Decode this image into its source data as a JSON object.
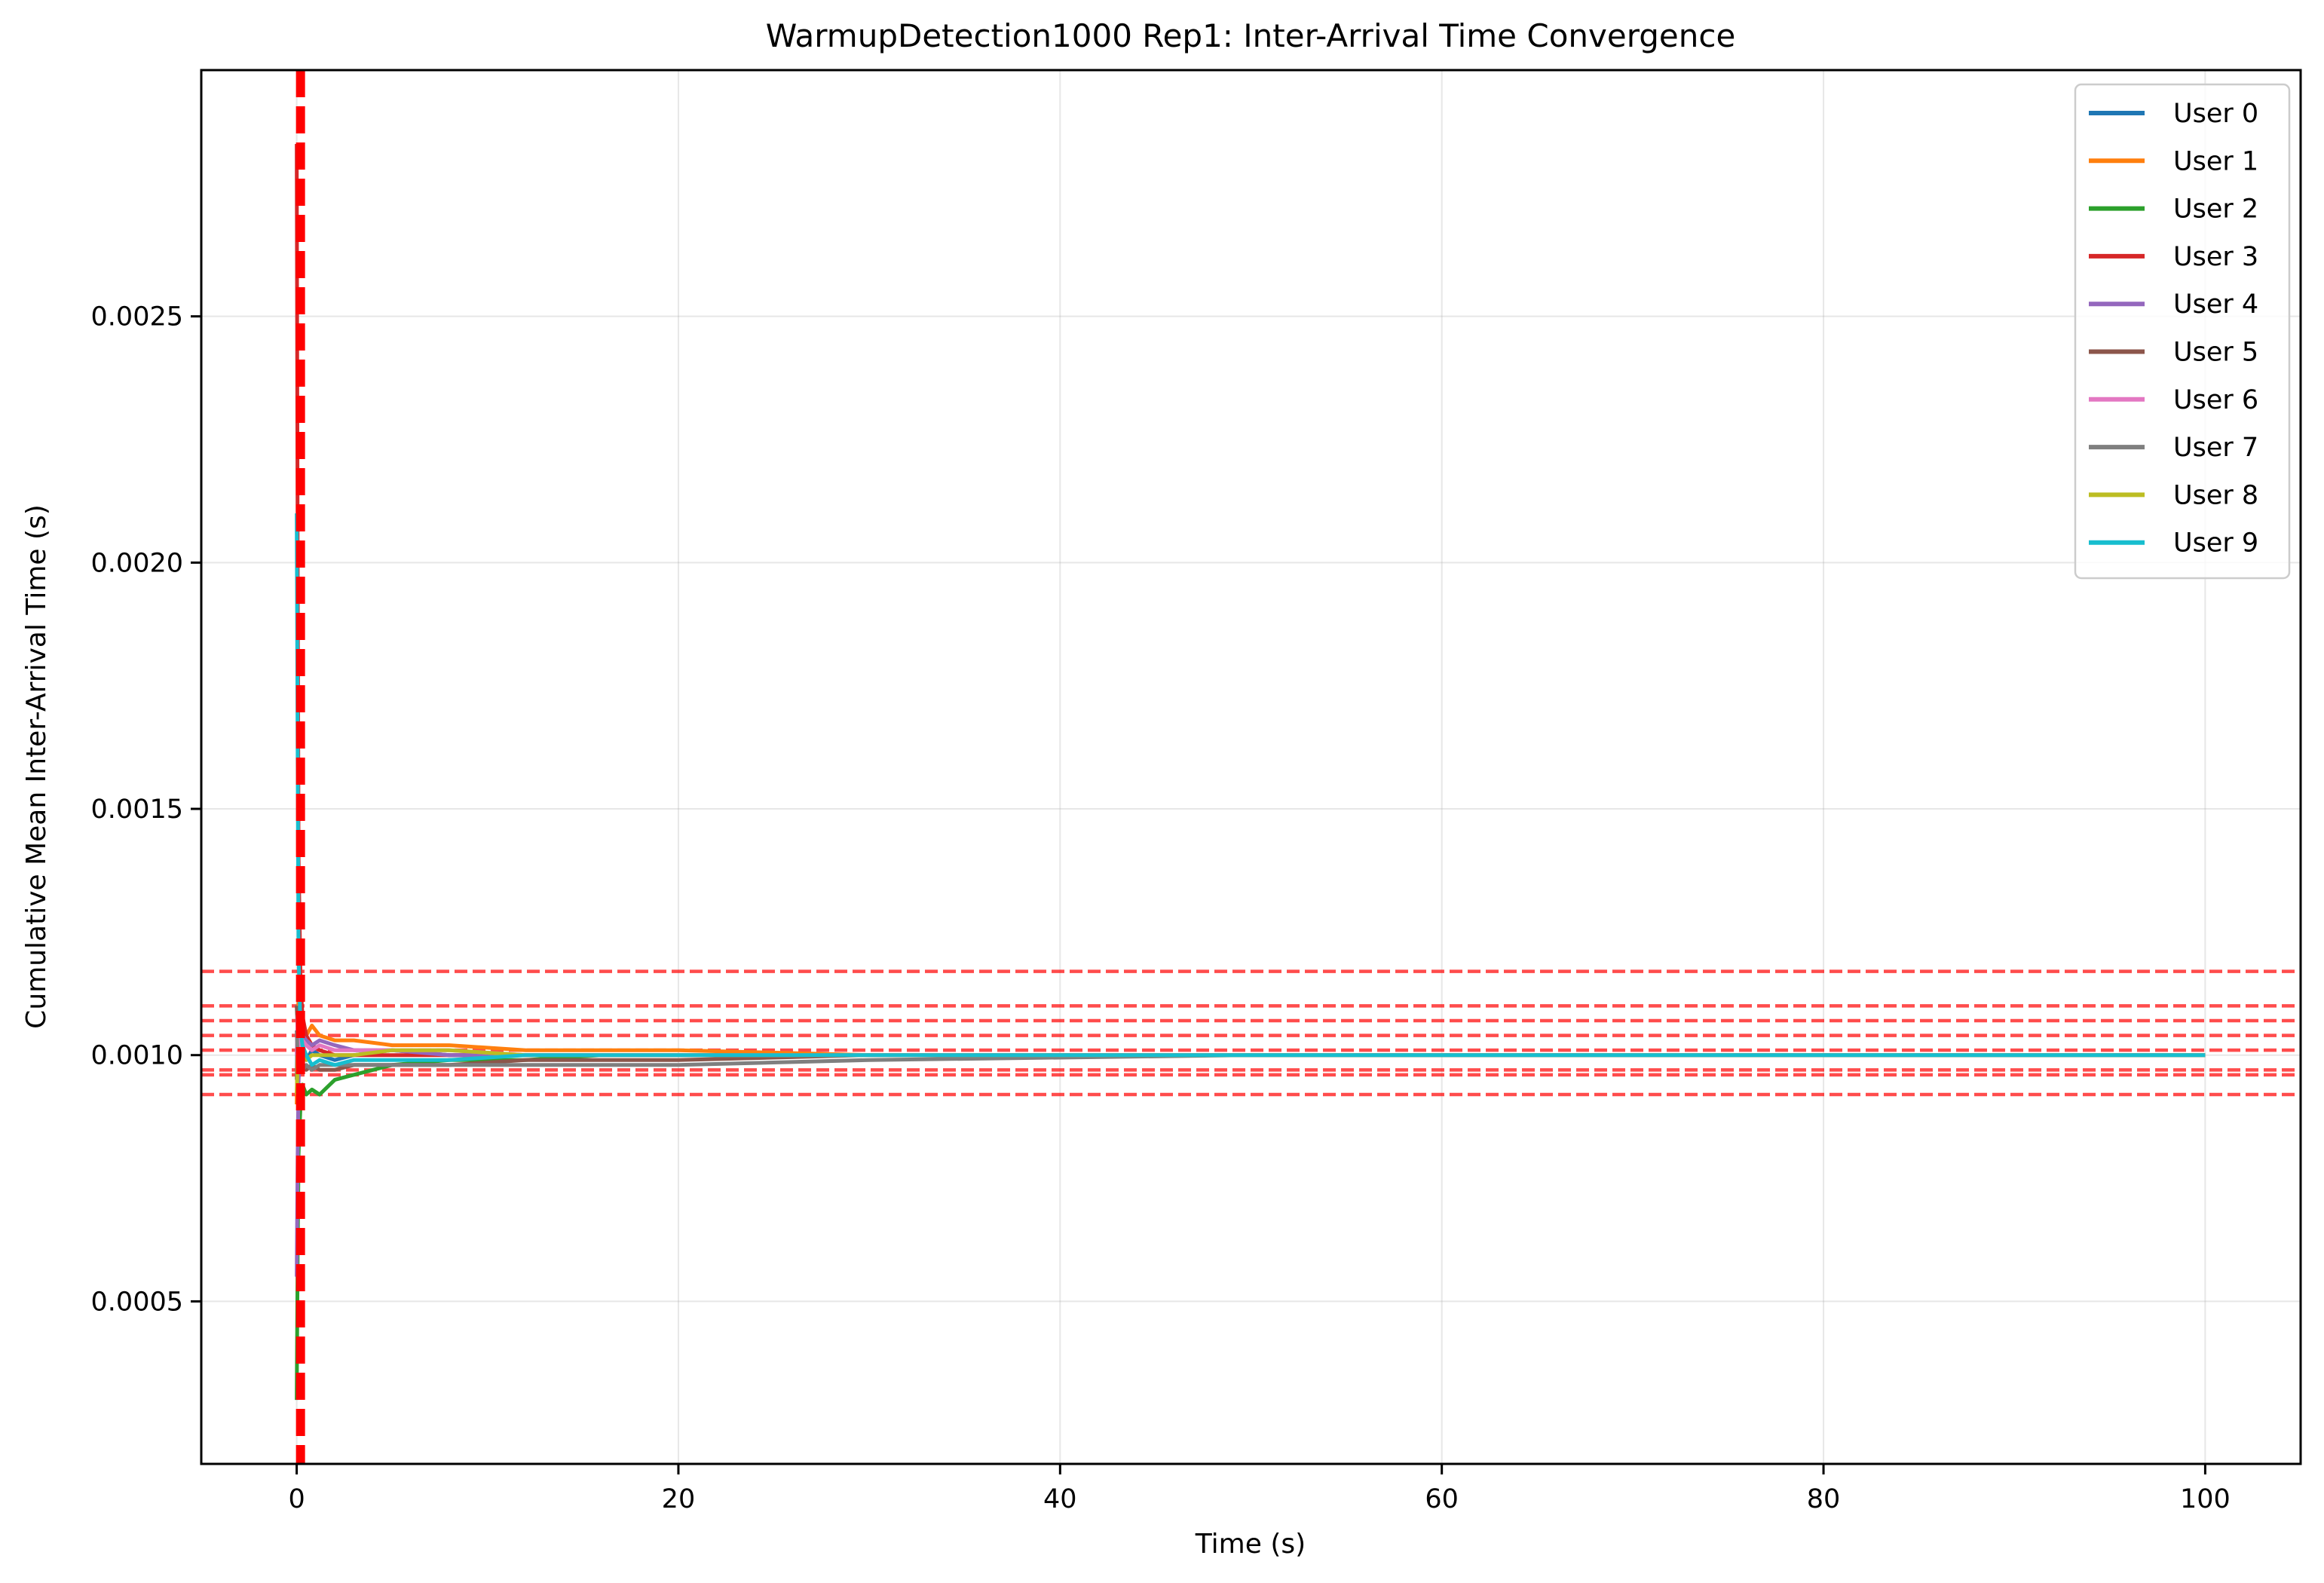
{
  "chart_data": {
    "type": "line",
    "title": "WarmupDetection1000 Rep1: Inter-Arrival Time Convergence",
    "xlabel": "Time (s)",
    "ylabel": "Cumulative Mean Inter-Arrival Time (s)",
    "xlim": [
      -5,
      105
    ],
    "ylim": [
      0.00017,
      0.003
    ],
    "xticks": [
      0,
      20,
      40,
      60,
      80,
      100
    ],
    "xtick_labels": [
      "0",
      "20",
      "40",
      "60",
      "80",
      "100"
    ],
    "yticks": [
      0.0005,
      0.001,
      0.0015,
      0.002,
      0.0025
    ],
    "ytick_labels": [
      "0.0005",
      "0.0010",
      "0.0015",
      "0.0020",
      "0.0025"
    ],
    "grid": true,
    "legend_position": "top-right",
    "warmup_vline_x": 0.2,
    "reference_hlines": [
      0.00117,
      0.0011,
      0.00107,
      0.00104,
      0.00101,
      0.00097,
      0.00096,
      0.00092
    ],
    "series": [
      {
        "name": "User 0",
        "color": "#1f77b4",
        "x": [
          0,
          0.05,
          0.1,
          0.2,
          0.3,
          0.5,
          0.8,
          1.2,
          2,
          3,
          5,
          8,
          12,
          16,
          20,
          30,
          50,
          70,
          100
        ],
        "y": [
          0.00095,
          0.0011,
          0.00104,
          0.001,
          0.00102,
          0.00099,
          0.00101,
          0.001,
          0.00099,
          0.001,
          0.00101,
          0.001,
          0.001,
          0.001,
          0.001,
          0.001,
          0.001,
          0.001,
          0.001
        ]
      },
      {
        "name": "User 1",
        "color": "#ff7f0e",
        "x": [
          0,
          0.05,
          0.1,
          0.2,
          0.3,
          0.5,
          0.8,
          1.2,
          2,
          3,
          5,
          8,
          12,
          16,
          20,
          30,
          50,
          70,
          100
        ],
        "y": [
          0.0009,
          0.00105,
          0.00112,
          0.00106,
          0.00107,
          0.00104,
          0.00106,
          0.00104,
          0.00103,
          0.00103,
          0.00102,
          0.00102,
          0.00101,
          0.00101,
          0.00101,
          0.001,
          0.001,
          0.001,
          0.001
        ]
      },
      {
        "name": "User 2",
        "color": "#2ca02c",
        "x": [
          0,
          0.05,
          0.1,
          0.2,
          0.3,
          0.5,
          0.8,
          1.2,
          2,
          3,
          5,
          8,
          12,
          16,
          20,
          30,
          50,
          70,
          100
        ],
        "y": [
          0.0003,
          0.0006,
          0.0008,
          0.0009,
          0.00094,
          0.00092,
          0.00093,
          0.00092,
          0.00095,
          0.00096,
          0.00098,
          0.00099,
          0.00099,
          0.001,
          0.001,
          0.001,
          0.001,
          0.001,
          0.001
        ]
      },
      {
        "name": "User 3",
        "color": "#d62728",
        "x": [
          0,
          0.05,
          0.1,
          0.2,
          0.3,
          0.5,
          0.8,
          1.2,
          2,
          3,
          5,
          8,
          12,
          16,
          20,
          30,
          50,
          70,
          100
        ],
        "y": [
          0.00285,
          0.002,
          0.0014,
          0.00115,
          0.00108,
          0.00104,
          0.00102,
          0.00101,
          0.001,
          0.001,
          0.001,
          0.001,
          0.001,
          0.001,
          0.001,
          0.001,
          0.001,
          0.001,
          0.001
        ]
      },
      {
        "name": "User 4",
        "color": "#9467bd",
        "x": [
          0,
          0.05,
          0.1,
          0.2,
          0.3,
          0.5,
          0.8,
          1.2,
          2,
          3,
          5,
          8,
          12,
          16,
          20,
          30,
          50,
          70,
          100
        ],
        "y": [
          0.00055,
          0.0008,
          0.00095,
          0.00101,
          0.00104,
          0.00103,
          0.00102,
          0.00103,
          0.00102,
          0.00101,
          0.00101,
          0.001,
          0.001,
          0.001,
          0.001,
          0.001,
          0.001,
          0.001,
          0.001
        ]
      },
      {
        "name": "User 5",
        "color": "#8c564b",
        "x": [
          0,
          0.05,
          0.1,
          0.2,
          0.3,
          0.5,
          0.8,
          1.2,
          2,
          3,
          5,
          8,
          12,
          16,
          20,
          30,
          50,
          70,
          100
        ],
        "y": [
          0.0011,
          0.00105,
          0.00099,
          0.00097,
          0.00098,
          0.00097,
          0.00098,
          0.00097,
          0.00097,
          0.00098,
          0.00098,
          0.00098,
          0.00099,
          0.00099,
          0.00099,
          0.001,
          0.001,
          0.001,
          0.001
        ]
      },
      {
        "name": "User 6",
        "color": "#e377c2",
        "x": [
          0,
          0.05,
          0.1,
          0.2,
          0.3,
          0.5,
          0.8,
          1.2,
          2,
          3,
          5,
          8,
          12,
          16,
          20,
          30,
          50,
          70,
          100
        ],
        "y": [
          0.001,
          0.00108,
          0.00104,
          0.00101,
          0.00103,
          0.00102,
          0.00101,
          0.00102,
          0.00101,
          0.00101,
          0.00101,
          0.00101,
          0.001,
          0.001,
          0.001,
          0.001,
          0.001,
          0.001,
          0.001
        ]
      },
      {
        "name": "User 7",
        "color": "#7f7f7f",
        "x": [
          0,
          0.05,
          0.1,
          0.2,
          0.3,
          0.5,
          0.8,
          1.2,
          2,
          3,
          5,
          8,
          12,
          16,
          20,
          30,
          50,
          70,
          100
        ],
        "y": [
          0.00105,
          0.001,
          0.00097,
          0.00098,
          0.00097,
          0.00098,
          0.00097,
          0.00098,
          0.00098,
          0.00098,
          0.00098,
          0.00098,
          0.00098,
          0.00098,
          0.00098,
          0.00099,
          0.001,
          0.001,
          0.001
        ]
      },
      {
        "name": "User 8",
        "color": "#bcbd22",
        "x": [
          0,
          0.05,
          0.1,
          0.2,
          0.3,
          0.5,
          0.8,
          1.2,
          2,
          3,
          5,
          8,
          12,
          16,
          20,
          30,
          50,
          70,
          100
        ],
        "y": [
          0.00092,
          0.00098,
          0.001,
          0.00099,
          0.001,
          0.00099,
          0.001,
          0.001,
          0.001,
          0.001,
          0.00101,
          0.00101,
          0.001,
          0.001,
          0.001,
          0.001,
          0.001,
          0.001,
          0.001
        ]
      },
      {
        "name": "User 9",
        "color": "#17becf",
        "x": [
          0,
          0.05,
          0.1,
          0.2,
          0.3,
          0.5,
          0.8,
          1.2,
          2,
          3,
          5,
          8,
          12,
          16,
          20,
          30,
          50,
          70,
          100
        ],
        "y": [
          0.0021,
          0.0016,
          0.0012,
          0.00105,
          0.00102,
          0.001,
          0.00098,
          0.00099,
          0.00098,
          0.00099,
          0.00099,
          0.00099,
          0.001,
          0.001,
          0.001,
          0.001,
          0.001,
          0.001,
          0.001
        ]
      }
    ]
  }
}
